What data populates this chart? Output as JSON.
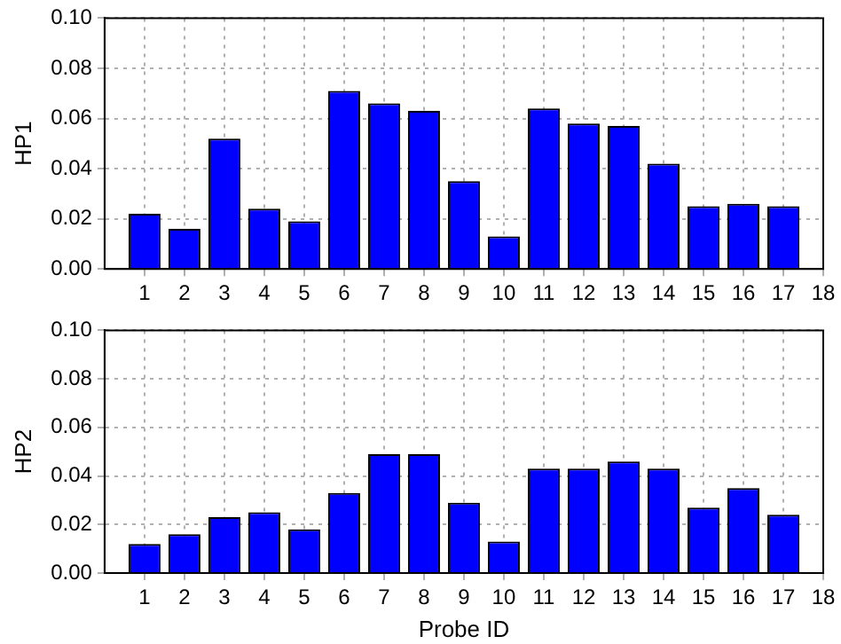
{
  "chart_data": [
    {
      "type": "bar",
      "ylabel": "HP1",
      "x": [
        1,
        2,
        3,
        4,
        5,
        6,
        7,
        8,
        9,
        10,
        11,
        12,
        13,
        14,
        15,
        16,
        17
      ],
      "series": [
        {
          "color": "#0000ff",
          "values": [
            0.022,
            0.016,
            0.052,
            0.024,
            0.019,
            0.071,
            0.066,
            0.063,
            0.035,
            0.013,
            0.064,
            0.058,
            0.057,
            0.042,
            0.025,
            0.026,
            0.025
          ]
        }
      ],
      "xlim": [
        0,
        18
      ],
      "xticks": [
        1,
        2,
        3,
        4,
        5,
        6,
        7,
        8,
        9,
        10,
        11,
        12,
        13,
        14,
        15,
        16,
        17,
        18
      ],
      "ylim": [
        0,
        0.1
      ],
      "yticks": [
        {
          "value": 0,
          "label": "0.00"
        },
        {
          "value": 0.02,
          "label": "0.02"
        },
        {
          "value": 0.04,
          "label": "0.04"
        },
        {
          "value": 0.06,
          "label": "0.06"
        },
        {
          "value": 0.08,
          "label": "0.08"
        },
        {
          "value": 0.1,
          "label": "0.10"
        }
      ],
      "grid": true,
      "legend": false
    },
    {
      "type": "bar",
      "xlabel": "Probe ID",
      "ylabel": "HP2",
      "x": [
        1,
        2,
        3,
        4,
        5,
        6,
        7,
        8,
        9,
        10,
        11,
        12,
        13,
        14,
        15,
        16,
        17
      ],
      "series": [
        {
          "color": "#0000ff",
          "values": [
            0.012,
            0.016,
            0.023,
            0.025,
            0.018,
            0.033,
            0.049,
            0.049,
            0.029,
            0.013,
            0.043,
            0.043,
            0.046,
            0.043,
            0.027,
            0.035,
            0.024
          ]
        }
      ],
      "xlim": [
        0,
        18
      ],
      "xticks": [
        1,
        2,
        3,
        4,
        5,
        6,
        7,
        8,
        9,
        10,
        11,
        12,
        13,
        14,
        15,
        16,
        17,
        18
      ],
      "ylim": [
        0,
        0.1
      ],
      "yticks": [
        {
          "value": 0,
          "label": "0.00"
        },
        {
          "value": 0.02,
          "label": "0.02"
        },
        {
          "value": 0.04,
          "label": "0.04"
        },
        {
          "value": 0.06,
          "label": "0.06"
        },
        {
          "value": 0.08,
          "label": "0.08"
        },
        {
          "value": 0.1,
          "label": "0.10"
        }
      ],
      "grid": true,
      "legend": false
    }
  ]
}
